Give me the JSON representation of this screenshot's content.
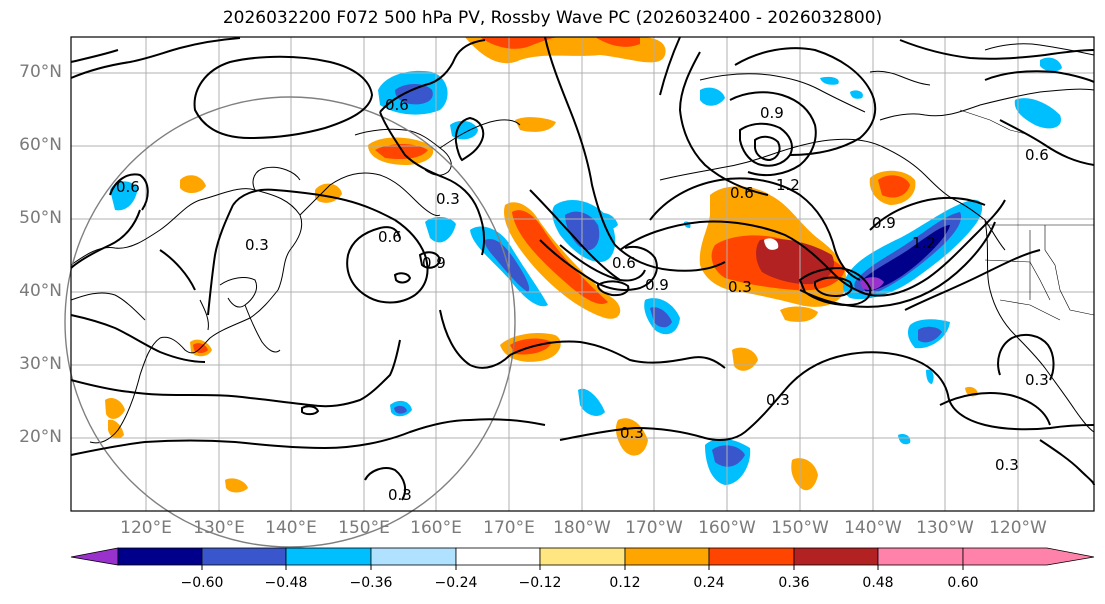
{
  "title": "2026032200 F072 500 hPa PV, Rossby Wave PC (2026032400 - 2026032800)",
  "lat_labels": [
    "70°N",
    "60°N",
    "50°N",
    "40°N",
    "30°N",
    "20°N"
  ],
  "lon_labels": [
    "120°E",
    "130°E",
    "140°E",
    "150°E",
    "160°E",
    "170°E",
    "180°W",
    "170°W",
    "160°W",
    "150°W",
    "140°W",
    "130°W",
    "120°W"
  ],
  "colorbar": {
    "ticks": [
      "−0.60",
      "−0.48",
      "−0.36",
      "−0.24",
      "−0.12",
      "0.12",
      "0.24",
      "0.36",
      "0.48",
      "0.60"
    ],
    "colors": [
      "#9932cc",
      "#00008b",
      "#3a56cc",
      "#00bfff",
      "#b0e2ff",
      "#ffffff",
      "#ffe680",
      "#ffa500",
      "#ff4500",
      "#b22222",
      "#ff82ab"
    ]
  },
  "contour_labels": [
    "0.3",
    "0.6",
    "0.9",
    "1.2",
    "0.3",
    "0.6",
    "0.9",
    "0.3",
    "0.6",
    "0.9",
    "0.3",
    "0.6",
    "0.9",
    "1.2",
    "0.3",
    "0.3",
    "0.3",
    "0.3",
    "0.6",
    "0.6"
  ]
}
